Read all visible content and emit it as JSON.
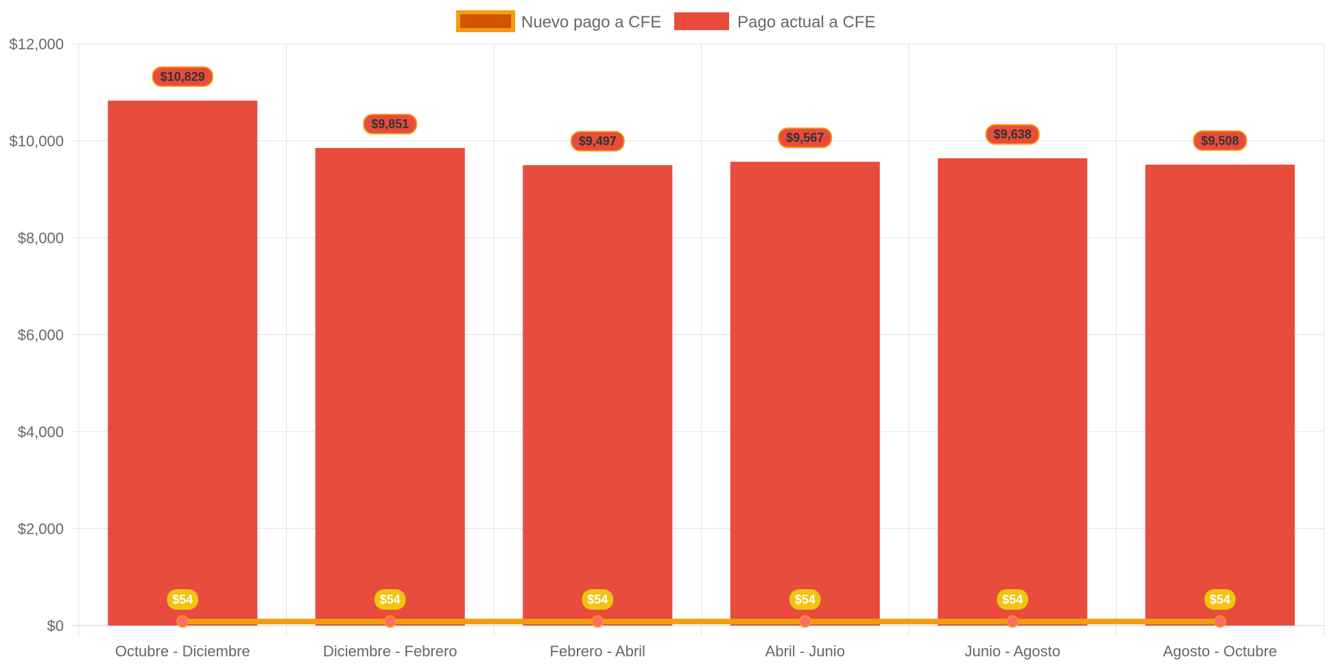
{
  "chart_data": {
    "type": "bar",
    "categories": [
      "Octubre - Diciembre",
      "Diciembre - Febrero",
      "Febrero - Abril",
      "Abril - Junio",
      "Junio - Agosto",
      "Agosto - Octubre"
    ],
    "series": [
      {
        "name": "Nuevo pago a CFE",
        "type": "line",
        "values": [
          54,
          54,
          54,
          54,
          54,
          54
        ],
        "labels": [
          "$54",
          "$54",
          "$54",
          "$54",
          "$54",
          "$54"
        ],
        "color": "#F39C12",
        "fill_color": "#D35400",
        "point_color": "#FF6B6B",
        "label_bg": "#F1C40F"
      },
      {
        "name": "Pago actual a CFE",
        "type": "bar",
        "values": [
          10829,
          9851,
          9497,
          9567,
          9638,
          9508
        ],
        "labels": [
          "$10,829",
          "$9,851",
          "$9,497",
          "$9,567",
          "$9,638",
          "$9,508"
        ],
        "color": "#E74C3C",
        "label_border": "#F39C12"
      }
    ],
    "y_ticks": [
      "$0",
      "$2,000",
      "$4,000",
      "$6,000",
      "$8,000",
      "$10,000",
      "$12,000"
    ],
    "ylim": [
      0,
      12000
    ],
    "title": "",
    "xlabel": "",
    "ylabel": "",
    "grid": true,
    "legend_position": "top"
  }
}
